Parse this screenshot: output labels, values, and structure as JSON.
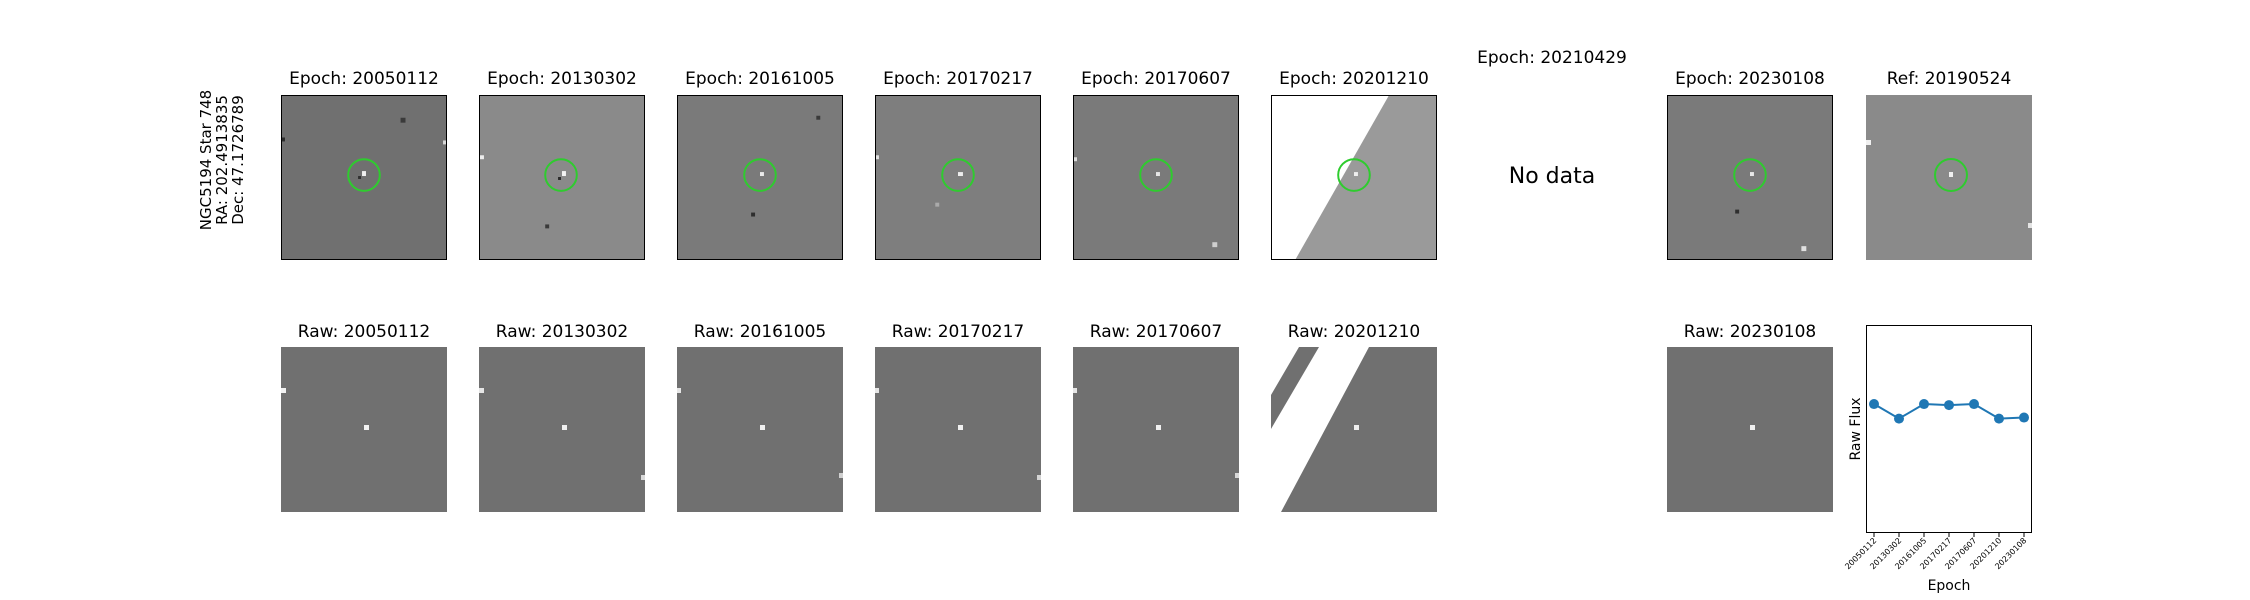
{
  "star_label": {
    "line1": "NGC5194 Star 748",
    "line2": "RA: 202.4913835",
    "line3": "Dec: 47.1726789"
  },
  "epoch_titles": [
    "Epoch: 20050112",
    "Epoch: 20130302",
    "Epoch: 20161005",
    "Epoch: 20170217",
    "Epoch: 20170607",
    "Epoch: 20201210",
    "Epoch: 20210429",
    "Epoch: 20230108"
  ],
  "ref_title": "Ref: 20190524",
  "no_data_text": "No data",
  "raw_titles": [
    "Raw: 20050112",
    "Raw: 20130302",
    "Raw: 20161005",
    "Raw: 20170217",
    "Raw: 20170607",
    "Raw: 20201210",
    "Raw: 20230108"
  ],
  "colors": {
    "circle": "#2ecc2e",
    "line": "#1f77b4",
    "panel_gray": "#6f6f6f"
  },
  "chart_data": {
    "type": "line",
    "x": [
      "20050112",
      "20130302",
      "20161005",
      "20170217",
      "20170607",
      "20201210",
      "20230108"
    ],
    "series": [
      {
        "values": [
          0.62,
          0.55,
          0.62,
          0.615,
          0.62,
          0.55,
          0.555
        ]
      }
    ],
    "xlabel": "Epoch",
    "ylabel": "Raw Flux",
    "ylim": [
      0,
      1
    ],
    "grid": false
  }
}
